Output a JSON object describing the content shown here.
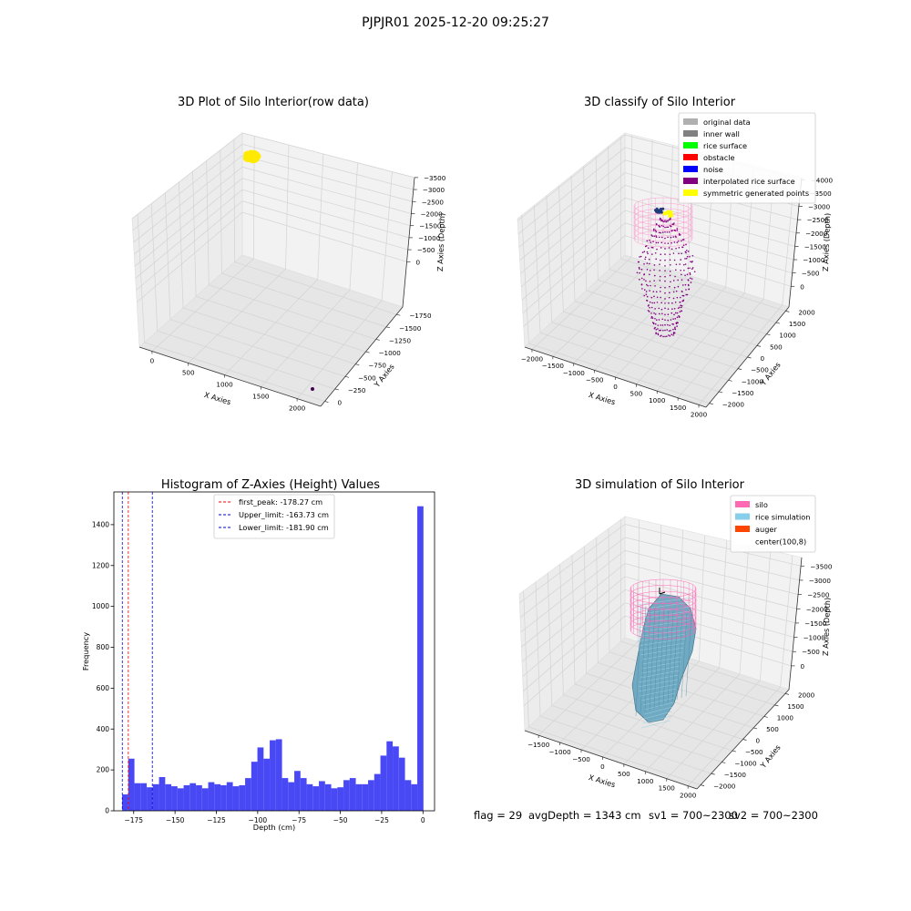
{
  "figure": {
    "suptitle": "PJPJR01 2025-12-20 09:25:27"
  },
  "footer": {
    "flag": "flag = 29",
    "avg_depth": "avgDepth = 1343 cm",
    "sv1": "sv1 = 700~2300",
    "sv2": "sv2 = 700~2300"
  },
  "chart_data": [
    {
      "id": "raw3d",
      "type": "scatter3d",
      "title": "3D Plot of Silo Interior(row data)",
      "xlabel": "X Axies",
      "ylabel": "Y Axies",
      "zlabel": "Z Axies (Depth)",
      "x_ticks": [
        "0",
        "500",
        "1000",
        "1500",
        "2000"
      ],
      "y_ticks": [
        "0",
        "−250",
        "−500",
        "−750",
        "−1000",
        "−1250",
        "−1500",
        "−1750"
      ],
      "z_ticks": [
        "0",
        "−500",
        "−1000",
        "−1500",
        "−2000",
        "−2500",
        "−3000",
        "−3500"
      ],
      "colors": {
        "cluster": "#ffea00",
        "outlier": "#440154"
      }
    },
    {
      "id": "classify3d",
      "type": "scatter3d",
      "title": "3D classify of Silo Interior",
      "xlabel": "X Axies",
      "ylabel": "Y Axies",
      "zlabel": "Z Axies (Depth)",
      "x_ticks": [
        "−2000",
        "−1500",
        "−1000",
        "−500",
        "0",
        "500",
        "1000",
        "1500",
        "2000"
      ],
      "y_ticks": [
        "2000",
        "1500",
        "1000",
        "500",
        "0",
        "−500",
        "−1000",
        "−1500",
        "−2000"
      ],
      "z_ticks": [
        "0",
        "−500",
        "−1000",
        "−1500",
        "−2000",
        "−2500",
        "−3000",
        "−3500",
        "−4000"
      ],
      "legend_position": "top-right",
      "legend": [
        {
          "label": "original data",
          "color": "#b0b0b0"
        },
        {
          "label": "inner wall",
          "color": "#808080"
        },
        {
          "label": "rice surface",
          "color": "#00ff00"
        },
        {
          "label": "obstacle",
          "color": "#ff0000"
        },
        {
          "label": "noise",
          "color": "#0000ff"
        },
        {
          "label": "interpolated rice surface",
          "color": "#800080"
        },
        {
          "label": "symmetric generated points",
          "color": "#ffff00"
        }
      ]
    },
    {
      "id": "hist",
      "type": "bar",
      "title": "Histogram of Z-Axies (Height) Values",
      "xlabel": "Depth (cm)",
      "ylabel": "Frequency",
      "xlim": [
        -187,
        7
      ],
      "ylim": [
        0,
        1560
      ],
      "x_ticks": [
        {
          "v": -175,
          "label": "−175"
        },
        {
          "v": -150,
          "label": "−150"
        },
        {
          "v": -125,
          "label": "−125"
        },
        {
          "v": -100,
          "label": "−100"
        },
        {
          "v": -75,
          "label": "−75"
        },
        {
          "v": -50,
          "label": "−50"
        },
        {
          "v": -25,
          "label": "−25"
        },
        {
          "v": 0,
          "label": "0"
        }
      ],
      "y_ticks": [
        {
          "v": 0,
          "label": "0"
        },
        {
          "v": 200,
          "label": "200"
        },
        {
          "v": 400,
          "label": "400"
        },
        {
          "v": 600,
          "label": "600"
        },
        {
          "v": 800,
          "label": "800"
        },
        {
          "v": 1000,
          "label": "1000"
        },
        {
          "v": 1200,
          "label": "1200"
        },
        {
          "v": 1400,
          "label": "1400"
        }
      ],
      "bar_color": "#4848f5",
      "bin_start": -182,
      "bin_width": 3.72,
      "values": [
        80,
        255,
        135,
        135,
        115,
        130,
        165,
        130,
        120,
        110,
        125,
        135,
        125,
        110,
        140,
        130,
        125,
        140,
        120,
        125,
        160,
        240,
        310,
        255,
        345,
        350,
        160,
        140,
        195,
        160,
        130,
        120,
        145,
        130,
        110,
        115,
        150,
        160,
        130,
        130,
        150,
        180,
        270,
        340,
        315,
        260,
        150,
        130,
        1490
      ],
      "lines": [
        {
          "label": "first_peak: -178.27 cm",
          "x": -178.27,
          "color": "#ff0000"
        },
        {
          "label": "Upper_limit: -163.73 cm",
          "x": -163.73,
          "color": "#0000cc"
        },
        {
          "label": "Lower_limit: -181.90 cm",
          "x": -181.9,
          "color": "#0000cc"
        }
      ],
      "legend_position": "top-center"
    },
    {
      "id": "sim3d",
      "type": "surface3d",
      "title": "3D simulation of Silo Interior",
      "xlabel": "X Axies",
      "ylabel": "Y Axies",
      "zlabel": "Z Axies (Depth)",
      "x_ticks": [
        "−1500",
        "−1000",
        "−500",
        "0",
        "500",
        "1000",
        "1500",
        "2000"
      ],
      "y_ticks": [
        "2000",
        "1500",
        "1000",
        "500",
        "0",
        "−500",
        "−1000",
        "−1500",
        "−2000"
      ],
      "z_ticks": [
        "0",
        "−500",
        "−1000",
        "−1500",
        "−2000",
        "−2500",
        "−3000",
        "−3500"
      ],
      "legend_position": "top-right",
      "legend": [
        {
          "label": "silo",
          "color": "#ff69b4"
        },
        {
          "label": "rice simulation",
          "color": "#87ceeb"
        },
        {
          "label": "auger",
          "color": "#ff4500"
        },
        {
          "label": "center(100,8)",
          "color": "#ffffff"
        }
      ]
    }
  ]
}
